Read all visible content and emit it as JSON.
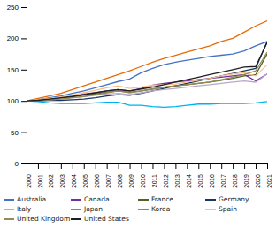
{
  "chart_data": {
    "type": "line",
    "x": [
      2000,
      2001,
      2002,
      2003,
      2004,
      2005,
      2006,
      2007,
      2008,
      2009,
      2010,
      2011,
      2012,
      2013,
      2014,
      2015,
      2016,
      2017,
      2018,
      2019,
      2020,
      2021
    ],
    "xlim": [
      2000,
      2021
    ],
    "xticks": [
      2000,
      2001,
      2002,
      2003,
      2004,
      2005,
      2006,
      2007,
      2008,
      2009,
      2010,
      2011,
      2012,
      2013,
      2014,
      2015,
      2016,
      2017,
      2018,
      2019,
      2020,
      2021
    ],
    "ylim": [
      0,
      250
    ],
    "yticks": [
      0,
      50,
      100,
      150,
      200,
      250
    ],
    "legend": "bottom",
    "series": [
      {
        "name": "Australia",
        "color": "#4472c4",
        "values": [
          100,
          102,
          105,
          108,
          112,
          116,
          121,
          126,
          131,
          135,
          145,
          152,
          158,
          162,
          165,
          168,
          171,
          173,
          175,
          180,
          188,
          195
        ]
      },
      {
        "name": "Canada",
        "color": "#7030a0",
        "values": [
          100,
          101,
          103,
          105,
          108,
          111,
          113,
          116,
          118,
          116,
          120,
          125,
          128,
          130,
          132,
          134,
          136,
          138,
          140,
          142,
          132,
          143
        ]
      },
      {
        "name": "France",
        "color": "#4f6228",
        "values": [
          100,
          101,
          103,
          105,
          107,
          109,
          111,
          114,
          116,
          114,
          116,
          119,
          122,
          124,
          126,
          128,
          130,
          133,
          136,
          140,
          142,
          175
        ]
      },
      {
        "name": "Germany",
        "color": "#17375e",
        "values": [
          100,
          100,
          101,
          101,
          102,
          103,
          105,
          108,
          110,
          109,
          112,
          116,
          120,
          124,
          128,
          132,
          136,
          140,
          144,
          148,
          152,
          195
        ]
      },
      {
        "name": "Italy",
        "color": "#b8a9c9",
        "values": [
          100,
          101,
          102,
          103,
          105,
          107,
          109,
          111,
          112,
          110,
          113,
          116,
          118,
          120,
          122,
          124,
          126,
          128,
          130,
          132,
          130,
          143
        ]
      },
      {
        "name": "Japan",
        "color": "#00b0f0",
        "values": [
          100,
          99,
          97,
          96,
          96,
          96,
          97,
          98,
          98,
          93,
          93,
          91,
          90,
          91,
          93,
          95,
          95,
          96,
          96,
          96,
          97,
          99
        ]
      },
      {
        "name": "Korea",
        "color": "#e36c09",
        "values": [
          100,
          104,
          108,
          112,
          118,
          124,
          130,
          136,
          142,
          148,
          155,
          162,
          168,
          173,
          178,
          183,
          188,
          195,
          200,
          210,
          220,
          228
        ]
      },
      {
        "name": "Spain",
        "color": "#fabf8f",
        "values": [
          100,
          102,
          104,
          106,
          109,
          113,
          117,
          121,
          124,
          120,
          122,
          125,
          126,
          127,
          130,
          133,
          136,
          140,
          143,
          145,
          140,
          158
        ]
      },
      {
        "name": "United Kingdom",
        "color": "#948a54",
        "values": [
          100,
          101,
          102,
          103,
          105,
          107,
          110,
          113,
          116,
          113,
          116,
          119,
          122,
          124,
          126,
          128,
          130,
          134,
          138,
          142,
          148,
          178
        ]
      },
      {
        "name": "United States",
        "color": "#1f1f1f",
        "values": [
          100,
          101,
          103,
          105,
          107,
          110,
          113,
          116,
          118,
          116,
          119,
          122,
          126,
          130,
          134,
          138,
          142,
          146,
          150,
          154,
          155,
          193
        ]
      }
    ]
  }
}
